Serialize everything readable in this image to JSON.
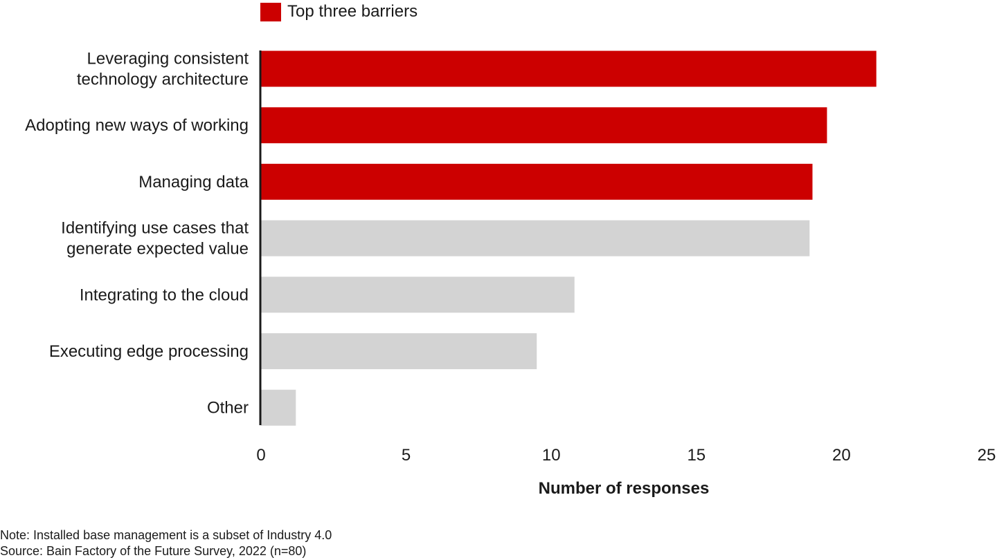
{
  "legend": {
    "label": "Top three barriers",
    "color": "#cc0000"
  },
  "colors": {
    "highlight": "#cc0000",
    "default": "#d3d3d3",
    "axis": "#1a1a1a"
  },
  "notes": {
    "note": "Note: Installed base management is a subset of Industry 4.0",
    "source": "Source: Bain Factory of the Future Survey, 2022 (n=80)"
  },
  "chart_data": {
    "type": "bar",
    "orientation": "horizontal",
    "title": "",
    "xlabel": "Number of responses",
    "ylabel": "",
    "xlim": [
      0,
      25
    ],
    "x_ticks": [
      0,
      5,
      10,
      15,
      20,
      25
    ],
    "grid": false,
    "legend_position": "top-left",
    "categories": [
      [
        "Leveraging consistent",
        "technology architecture"
      ],
      [
        "Adopting new ways of working"
      ],
      [
        "Managing data"
      ],
      [
        "Identifying use cases that",
        "generate expected value"
      ],
      [
        "Integrating to the cloud"
      ],
      [
        "Executing edge processing"
      ],
      [
        "Other"
      ]
    ],
    "values": [
      21.2,
      19.5,
      19.0,
      18.9,
      10.8,
      9.5,
      1.2
    ],
    "highlighted": [
      true,
      true,
      true,
      false,
      false,
      false,
      false
    ]
  }
}
